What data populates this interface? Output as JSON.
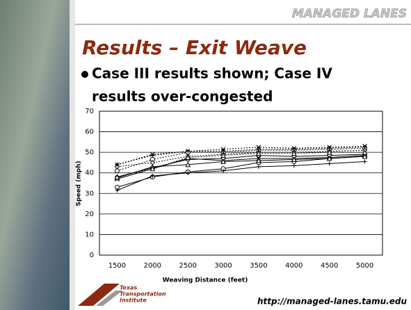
{
  "header": "MANAGED LANES",
  "title": "Results – Exit Weave",
  "bullet": [
    "Case III results shown; Case IV",
    "results over-congested"
  ],
  "logo": [
    "Texas",
    "Transportation",
    "Institute"
  ],
  "url": "http://managed-lanes.tamu.edu",
  "chart_data": {
    "type": "line",
    "xlabel": "Weaving Distance (feet)",
    "ylabel": "Speed (mph)",
    "categories": [
      1500,
      2000,
      2500,
      3000,
      3500,
      4000,
      4500,
      5000
    ],
    "ylim": [
      0,
      70
    ],
    "yticks": [
      0,
      10,
      20,
      30,
      40,
      50,
      60,
      70
    ],
    "grid": true,
    "series": [
      {
        "color": "#000000",
        "dash": "solid",
        "marker": "circle",
        "values": [
          33,
          38,
          40.5,
          42,
          45,
          45.5,
          47,
          48
        ]
      },
      {
        "color": "#000000",
        "dash": "solid",
        "marker": "plus",
        "values": [
          31.5,
          38.5,
          40,
          41,
          43,
          43.5,
          44.5,
          45.5
        ]
      },
      {
        "color": "#000000",
        "dash": "solid",
        "marker": "star",
        "values": [
          37,
          42,
          47,
          46,
          47,
          47,
          47.5,
          48.5
        ]
      },
      {
        "color": "#000000",
        "dash": "solid",
        "marker": "diamond",
        "values": [
          38,
          42.5,
          46.5,
          47,
          48.5,
          48,
          48.5,
          49
        ]
      },
      {
        "color": "#000000",
        "dash": "solid",
        "marker": "triangle",
        "values": [
          37.5,
          43,
          44,
          45.5,
          46,
          46.5,
          47,
          48
        ]
      },
      {
        "color": "#000000",
        "dash": "dotted",
        "marker": "star",
        "values": [
          44,
          49,
          50.5,
          51.5,
          52.5,
          52,
          52.5,
          53
        ]
      },
      {
        "color": "#000000",
        "dash": "dotted",
        "marker": "circle",
        "values": [
          41,
          46.5,
          50,
          50,
          51,
          51,
          51.5,
          52
        ]
      },
      {
        "color": "#000000",
        "dash": "dotted",
        "marker": "diamond",
        "values": [
          43,
          45,
          48,
          49,
          50,
          50,
          50.5,
          51
        ]
      },
      {
        "color": "#000000",
        "dash": "dotted",
        "marker": "triangle",
        "values": [
          38,
          42,
          47.5,
          48.5,
          49.5,
          49.5,
          50,
          50
        ]
      },
      {
        "color": "#000000",
        "dash": "dotted",
        "marker": "plus",
        "values": [
          44,
          48.5,
          50.5,
          50.5,
          51.5,
          51.5,
          52,
          52.5
        ]
      }
    ]
  }
}
